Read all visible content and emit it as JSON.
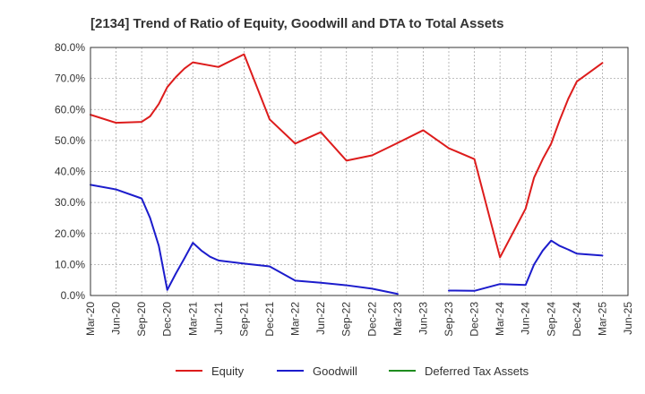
{
  "chart_data": {
    "type": "line",
    "title": "[2134]  Trend of Ratio of Equity, Goodwill and DTA to Total Assets",
    "xlabel": "",
    "ylabel": "",
    "ylim": [
      0,
      80
    ],
    "yticks": [
      0,
      10,
      20,
      30,
      40,
      50,
      60,
      70,
      80
    ],
    "ytick_labels": [
      "0.0%",
      "10.0%",
      "20.0%",
      "30.0%",
      "40.0%",
      "50.0%",
      "60.0%",
      "70.0%",
      "80.0%"
    ],
    "categories": [
      "Mar-20",
      "Jun-20",
      "Sep-20",
      "Dec-20",
      "Mar-21",
      "Jun-21",
      "Sep-21",
      "Dec-21",
      "Mar-22",
      "Jun-22",
      "Sep-22",
      "Dec-22",
      "Mar-23",
      "Jun-23",
      "Sep-23",
      "Dec-23",
      "Mar-24",
      "Jun-24",
      "Sep-24",
      "Dec-24",
      "Mar-25",
      "Jun-25"
    ],
    "series": [
      {
        "name": "Equity",
        "color": "#dd1c1c",
        "points": [
          [
            0,
            58.3
          ],
          [
            1,
            55.7
          ],
          [
            2,
            56.0
          ],
          [
            2.33,
            57.8
          ],
          [
            2.67,
            61.8
          ],
          [
            3,
            67.2
          ],
          [
            3.33,
            70.4
          ],
          [
            3.67,
            73.2
          ],
          [
            4,
            75.2
          ],
          [
            5,
            73.7
          ],
          [
            6,
            77.8
          ],
          [
            7,
            56.8
          ],
          [
            8,
            49.0
          ],
          [
            9,
            52.7
          ],
          [
            10,
            43.5
          ],
          [
            11,
            45.2
          ],
          [
            12,
            49.2
          ],
          [
            13,
            53.3
          ],
          [
            14,
            47.5
          ],
          [
            15,
            44.0
          ],
          [
            16,
            12.3
          ],
          [
            17,
            28.0
          ],
          [
            17.33,
            38.0
          ],
          [
            17.67,
            44.0
          ],
          [
            18,
            49.0
          ],
          [
            18.33,
            56.5
          ],
          [
            18.67,
            63.5
          ],
          [
            19,
            69.0
          ],
          [
            20,
            75.0
          ]
        ]
      },
      {
        "name": "Goodwill",
        "color": "#1c1ccc",
        "points": [
          [
            0,
            35.7
          ],
          [
            1,
            34.2
          ],
          [
            2,
            31.3
          ],
          [
            2.33,
            25.0
          ],
          [
            2.67,
            16.0
          ],
          [
            3,
            1.8
          ],
          [
            3.33,
            7.0
          ],
          [
            3.67,
            12.0
          ],
          [
            4,
            17.0
          ],
          [
            4.33,
            14.5
          ],
          [
            4.67,
            12.5
          ],
          [
            5,
            11.3
          ],
          [
            6,
            10.3
          ],
          [
            7,
            9.4
          ],
          [
            8,
            4.8
          ],
          [
            9,
            4.1
          ],
          [
            10,
            3.3
          ],
          [
            11,
            2.2
          ],
          [
            12,
            0.5
          ]
        ],
        "points_b": [
          [
            14,
            1.6
          ],
          [
            15,
            1.5
          ],
          [
            16,
            3.7
          ],
          [
            17,
            3.4
          ],
          [
            17.33,
            10.0
          ],
          [
            17.67,
            14.5
          ],
          [
            18,
            17.7
          ],
          [
            18.33,
            16.0
          ],
          [
            18.67,
            14.8
          ],
          [
            19,
            13.5
          ],
          [
            20,
            12.9
          ]
        ]
      },
      {
        "name": "Deferred Tax Assets",
        "color": "#1e8c1e",
        "points": []
      }
    ],
    "legend_position": "bottom",
    "grid": true
  }
}
